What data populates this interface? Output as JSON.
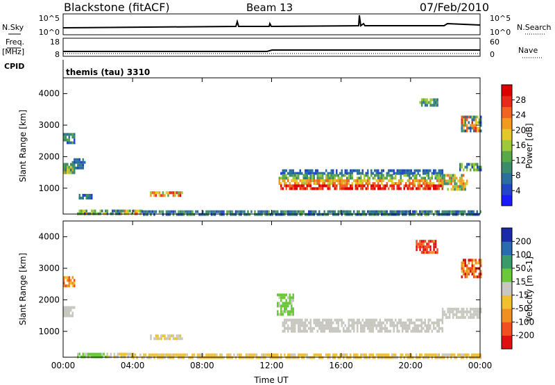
{
  "header": {
    "station": "Blackstone (fitACF)",
    "beam": "Beam 13",
    "date": "07/Feb/2010"
  },
  "panel_labels": {
    "nsky": "N.Sky",
    "nsky_ticks": [
      "10^5",
      "10^0"
    ],
    "nsearch": "N.Search",
    "nsearch_ticks": [
      "10^5",
      "10^0"
    ],
    "freq": "Freq.",
    "freq_unit": "[MHz]",
    "freq_ticks": [
      "18",
      "8"
    ],
    "nave": "Nave",
    "nave_ticks": [
      "60",
      "0"
    ],
    "cpid": "CPID",
    "cpid_value": "themis (tau) 3310"
  },
  "chart_data": [
    {
      "type": "heatmap",
      "name": "power",
      "ylabel": "Slant Range [km]",
      "xlabel": "",
      "xlim": [
        0,
        24
      ],
      "ylim": [
        180,
        4500
      ],
      "y_ticks": [
        1000,
        2000,
        3000,
        4000
      ],
      "x_ticks": [
        "00:00",
        "04:00",
        "08:00",
        "12:00",
        "16:00",
        "20:00",
        "00:00"
      ],
      "colorbar": {
        "label": "Power [dB]",
        "ticks": [
          "4",
          "8",
          "12",
          "16",
          "20",
          "24",
          "28"
        ],
        "range": [
          0,
          30
        ],
        "colors": [
          "#1a1aff",
          "#2346c8",
          "#2b6f9f",
          "#3a8c6a",
          "#5aa84a",
          "#9dc93a",
          "#e4c72a",
          "#f29a20",
          "#f06420",
          "#e82a1a",
          "#dd0000"
        ]
      },
      "regions": [
        {
          "t": [
            0.0,
            0.6
          ],
          "r": [
            2450,
            2750
          ],
          "v": [
            4,
            12
          ]
        },
        {
          "t": [
            0.0,
            0.6
          ],
          "r": [
            1450,
            1800
          ],
          "v": [
            8,
            20
          ]
        },
        {
          "t": [
            0.5,
            1.2
          ],
          "r": [
            1650,
            1950
          ],
          "v": [
            4,
            10
          ]
        },
        {
          "t": [
            0.8,
            1.6
          ],
          "r": [
            700,
            820
          ],
          "v": [
            4,
            10
          ]
        },
        {
          "t": [
            0.8,
            2.5
          ],
          "r": [
            200,
            320
          ],
          "v": [
            4,
            20
          ]
        },
        {
          "t": [
            2.5,
            3.3
          ],
          "r": [
            200,
            320
          ],
          "v": [
            4,
            14
          ]
        },
        {
          "t": [
            3.3,
            4.5
          ],
          "r": [
            200,
            320
          ],
          "v": [
            6,
            24
          ]
        },
        {
          "t": [
            4.5,
            12.0
          ],
          "r": [
            200,
            300
          ],
          "v": [
            4,
            12
          ]
        },
        {
          "t": [
            5.0,
            6.8
          ],
          "r": [
            780,
            900
          ],
          "v": [
            8,
            28
          ]
        },
        {
          "t": [
            12.4,
            21.8
          ],
          "r": [
            1450,
            1600
          ],
          "v": [
            4,
            8
          ]
        },
        {
          "t": [
            12.4,
            21.8
          ],
          "r": [
            1280,
            1450
          ],
          "v": [
            8,
            16
          ]
        },
        {
          "t": [
            12.4,
            21.8
          ],
          "r": [
            1120,
            1280
          ],
          "v": [
            16,
            24
          ]
        },
        {
          "t": [
            12.4,
            21.8
          ],
          "r": [
            980,
            1120
          ],
          "v": [
            22,
            30
          ]
        },
        {
          "t": [
            21.8,
            23.2
          ],
          "r": [
            1000,
            1450
          ],
          "v": [
            8,
            24
          ]
        },
        {
          "t": [
            22.8,
            24.0
          ],
          "r": [
            1550,
            1800
          ],
          "v": [
            4,
            16
          ]
        },
        {
          "t": [
            22.9,
            24.0
          ],
          "r": [
            2800,
            3300
          ],
          "v": [
            4,
            28
          ]
        },
        {
          "t": [
            20.5,
            21.5
          ],
          "r": [
            3600,
            3850
          ],
          "v": [
            6,
            16
          ]
        },
        {
          "t": [
            12.0,
            24.0
          ],
          "r": [
            200,
            300
          ],
          "v": [
            4,
            12
          ]
        }
      ]
    },
    {
      "type": "heatmap",
      "name": "velocity",
      "ylabel": "Slant Range [km]",
      "xlabel": "Time UT",
      "xlim": [
        0,
        24
      ],
      "ylim": [
        180,
        4500
      ],
      "y_ticks": [
        1000,
        2000,
        3000,
        4000
      ],
      "x_ticks": [
        "00:00",
        "04:00",
        "08:00",
        "12:00",
        "16:00",
        "20:00",
        "00:00"
      ],
      "colorbar": {
        "label": "Velocity [m s-1]",
        "ticks": [
          "200",
          "100",
          "50",
          "15",
          "-15",
          "-50",
          "-100",
          "-200"
        ],
        "range": [
          -250,
          250
        ],
        "colors": [
          "#1a2aa8",
          "#2a6ab0",
          "#3a9a6a",
          "#6ac83a",
          "#c8c8c0",
          "#f0c030",
          "#f09020",
          "#f05020",
          "#e01010"
        ]
      },
      "regions": [
        {
          "t": [
            0.0,
            0.6
          ],
          "r": [
            2450,
            2750
          ],
          "v": [
            -150,
            -40
          ]
        },
        {
          "t": [
            0.0,
            0.6
          ],
          "r": [
            1450,
            1800
          ],
          "v": [
            -10,
            10
          ]
        },
        {
          "t": [
            0.8,
            2.5
          ],
          "r": [
            200,
            320
          ],
          "v": [
            20,
            60
          ]
        },
        {
          "t": [
            2.5,
            4.0
          ],
          "r": [
            200,
            320
          ],
          "v": [
            -40,
            10
          ]
        },
        {
          "t": [
            4.0,
            12.0
          ],
          "r": [
            200,
            300
          ],
          "v": [
            -60,
            -20
          ]
        },
        {
          "t": [
            5.0,
            6.8
          ],
          "r": [
            780,
            900
          ],
          "v": [
            -60,
            5
          ]
        },
        {
          "t": [
            12.3,
            13.2
          ],
          "r": [
            1500,
            2200
          ],
          "v": [
            20,
            60
          ]
        },
        {
          "t": [
            12.6,
            21.8
          ],
          "r": [
            1000,
            1400
          ],
          "v": [
            -10,
            10
          ]
        },
        {
          "t": [
            21.8,
            24.0
          ],
          "r": [
            1450,
            1750
          ],
          "v": [
            -10,
            10
          ]
        },
        {
          "t": [
            12.0,
            24.0
          ],
          "r": [
            200,
            300
          ],
          "v": [
            -60,
            -20
          ]
        },
        {
          "t": [
            20.3,
            21.5
          ],
          "r": [
            3500,
            3900
          ],
          "v": [
            -250,
            -120
          ]
        },
        {
          "t": [
            22.9,
            24.0
          ],
          "r": [
            2700,
            3300
          ],
          "v": [
            -250,
            -60
          ]
        }
      ]
    }
  ],
  "colors": {
    "axis": "#000000"
  }
}
